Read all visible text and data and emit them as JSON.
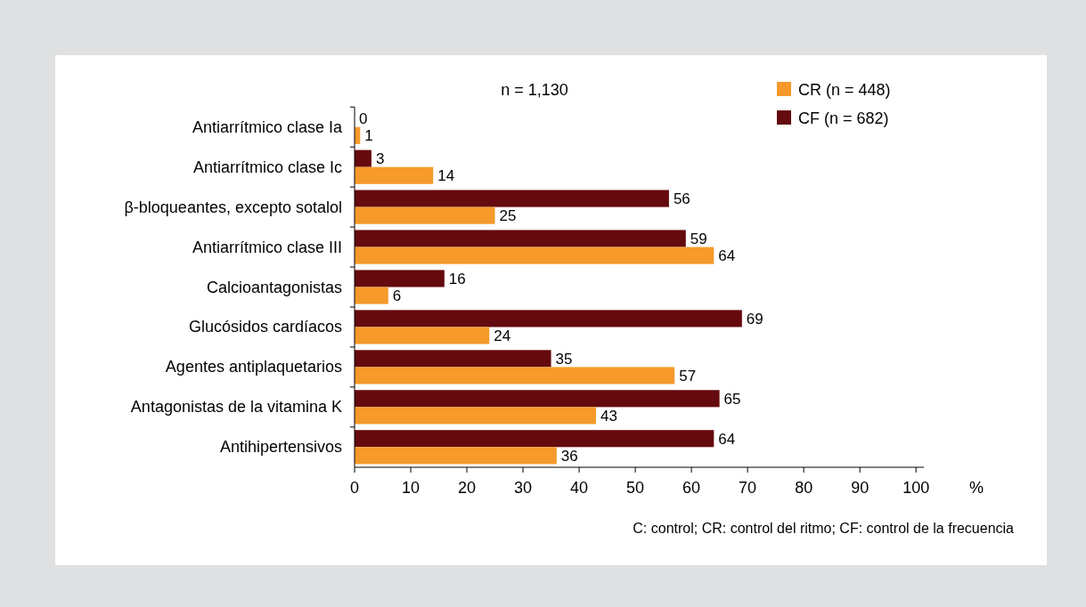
{
  "chart_data": {
    "type": "bar",
    "orientation": "horizontal",
    "title": "n = 1,130",
    "xlabel": "%",
    "categories": [
      "Antiarrítmico clase Ia",
      "Antiarrítmico clase Ic",
      "β-bloqueantes, excepto sotalol",
      "Antiarrítmico clase III",
      "Calcioantagonistas",
      "Glucósidos cardíacos",
      "Agentes antiplaquetarios",
      "Antagonistas de la vitamina K",
      "Antihipertensivos"
    ],
    "series": [
      {
        "name": "CF (n = 682)",
        "color": "#650a0e",
        "values": [
          0,
          3,
          56,
          59,
          16,
          69,
          35,
          65,
          64
        ]
      },
      {
        "name": "CR (n = 448)",
        "color": "#f59a2b",
        "values": [
          1,
          14,
          25,
          64,
          6,
          24,
          57,
          43,
          36
        ]
      }
    ],
    "xlim": [
      0,
      101.4
    ],
    "xticks": [
      0,
      10,
      20,
      30,
      40,
      50,
      60,
      70,
      80,
      90,
      100
    ],
    "data_labels": true,
    "legend": "top right",
    "grid": false,
    "annotations": [
      "C: control; CR: control del ritmo; CF: control de la frecuencia"
    ]
  }
}
